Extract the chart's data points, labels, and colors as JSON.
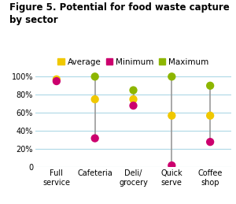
{
  "title": "Figure 5. Potential for food waste capture\nby sector",
  "categories": [
    "Full\nservice",
    "Cafeteria",
    "Deli/\ngrocery",
    "Quick\nserve",
    "Coffee\nshop"
  ],
  "average": [
    97,
    75,
    75,
    57,
    57
  ],
  "minimum": [
    95,
    32,
    68,
    2,
    28
  ],
  "maximum": [
    null,
    100,
    85,
    100,
    90
  ],
  "color_average": "#f0c800",
  "color_minimum": "#cc006e",
  "color_maximum": "#8db600",
  "color_line": "#999999",
  "ylim": [
    0,
    108
  ],
  "yticks": [
    0,
    20,
    40,
    60,
    80,
    100
  ],
  "ytick_labels": [
    "0",
    "20%",
    "40%",
    "60%",
    "80%",
    "100%"
  ],
  "background_color": "#ffffff",
  "grid_color": "#add8e6",
  "title_fontsize": 8.5,
  "tick_fontsize": 7.0,
  "legend_fontsize": 7.5,
  "marker_size": 55
}
